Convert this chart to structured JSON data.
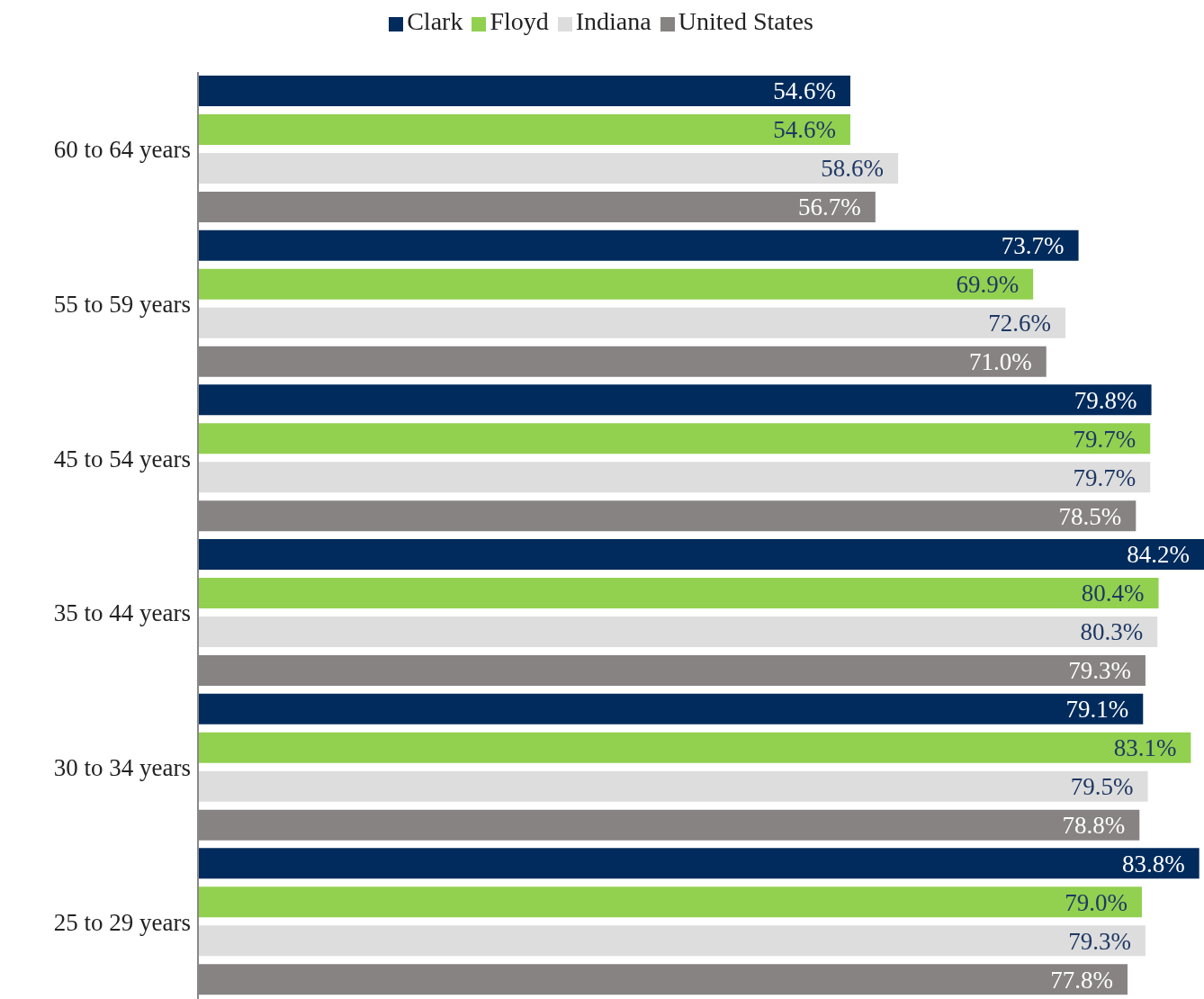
{
  "chart_data": {
    "type": "bar",
    "orientation": "horizontal",
    "legend": "top",
    "grid": false,
    "categories": [
      "60 to 64 years",
      "55 to 59 years",
      "45 to 54 years",
      "35 to 44 years",
      "30 to 34 years",
      "25 to 29 years"
    ],
    "series": [
      {
        "name": "Clark",
        "color": "#002b5c",
        "values": [
          54.6,
          73.7,
          79.8,
          84.2,
          79.1,
          83.8
        ],
        "value_labels": [
          "54.6%",
          "73.7%",
          "79.8%",
          "84.2%",
          "79.1%",
          "83.8%"
        ]
      },
      {
        "name": "Floyd",
        "color": "#92d050",
        "values": [
          54.6,
          69.9,
          79.7,
          80.4,
          83.1,
          79.0
        ],
        "value_labels": [
          "54.6%",
          "69.9%",
          "79.7%",
          "80.4%",
          "83.1%",
          "79.0%"
        ]
      },
      {
        "name": "Indiana",
        "color": "#dddddd",
        "values": [
          58.6,
          72.6,
          79.7,
          80.3,
          79.5,
          79.3
        ],
        "value_labels": [
          "58.6%",
          "72.6%",
          "79.7%",
          "80.3%",
          "79.5%",
          "79.3%"
        ]
      },
      {
        "name": "United States",
        "color": "#878382",
        "values": [
          56.7,
          71.0,
          78.5,
          79.3,
          78.8,
          77.8
        ],
        "value_labels": [
          "56.7%",
          "71.0%",
          "78.5%",
          "79.3%",
          "78.8%",
          "77.8%"
        ]
      }
    ]
  }
}
